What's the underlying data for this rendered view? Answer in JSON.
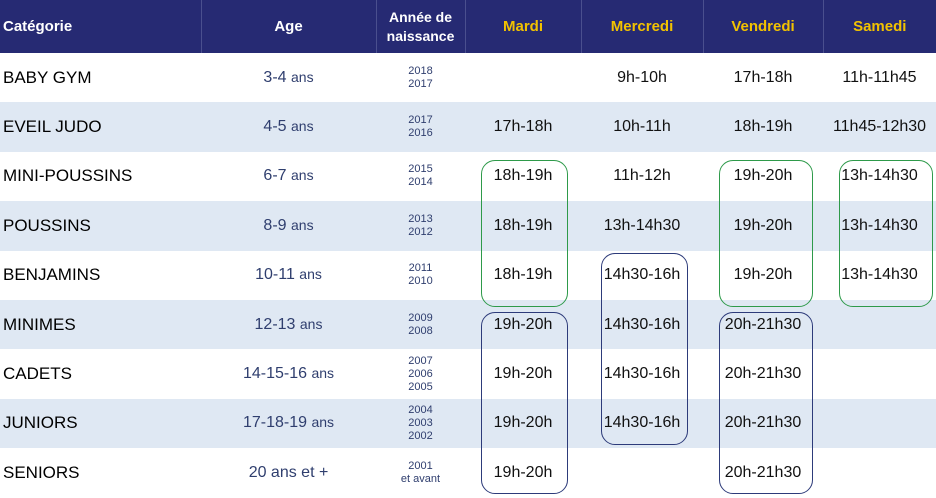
{
  "header": {
    "categorie": "Catégorie",
    "age": "Age",
    "annee_line1": "Année de",
    "annee_line2": "naissance",
    "days": [
      "Mardi",
      "Mercredi",
      "Vendredi",
      "Samedi"
    ]
  },
  "rows": [
    {
      "cat": "BABY GYM",
      "age_num": "3-4",
      "age_unit": "ans",
      "years": [
        "2018",
        "2017"
      ],
      "mardi": "",
      "mercredi": "9h-10h",
      "vendredi": "17h-18h",
      "samedi": "11h-11h45"
    },
    {
      "cat": "EVEIL JUDO",
      "age_num": "4-5",
      "age_unit": "ans",
      "years": [
        "2017",
        "2016"
      ],
      "mardi": "17h-18h",
      "mercredi": "10h-11h",
      "vendredi": "18h-19h",
      "samedi": "11h45-12h30"
    },
    {
      "cat": "MINI-POUSSINS",
      "age_num": "6-7",
      "age_unit": "ans",
      "years": [
        "2015",
        "2014"
      ],
      "mardi": "18h-19h",
      "mercredi": "11h-12h",
      "vendredi": "19h-20h",
      "samedi": "13h-14h30"
    },
    {
      "cat": "POUSSINS",
      "age_num": "8-9",
      "age_unit": "ans",
      "years": [
        "2013",
        "2012"
      ],
      "mardi": "18h-19h",
      "mercredi": "13h-14h30",
      "vendredi": "19h-20h",
      "samedi": "13h-14h30"
    },
    {
      "cat": "BENJAMINS",
      "age_num": "10-11",
      "age_unit": "ans",
      "years": [
        "2011",
        "2010"
      ],
      "mardi": "18h-19h",
      "mercredi": "14h30-16h",
      "vendredi": "19h-20h",
      "samedi": "13h-14h30"
    },
    {
      "cat": "MINIMES",
      "age_num": "12-13",
      "age_unit": "ans",
      "years": [
        "2009",
        "2008"
      ],
      "mardi": "19h-20h",
      "mercredi": "14h30-16h",
      "vendredi": "20h-21h30",
      "samedi": ""
    },
    {
      "cat": "CADETS",
      "age_num": "14-15-16",
      "age_unit": "ans",
      "years": [
        "2007",
        "2006",
        "2005"
      ],
      "mardi": "19h-20h",
      "mercredi": "14h30-16h",
      "vendredi": "20h-21h30",
      "samedi": ""
    },
    {
      "cat": "JUNIORS",
      "age_num": "17-18-19",
      "age_unit": "ans",
      "years": [
        "2004",
        "2003",
        "2002"
      ],
      "mardi": "19h-20h",
      "mercredi": "14h30-16h",
      "vendredi": "20h-21h30",
      "samedi": ""
    },
    {
      "cat": "SENIORS",
      "age_num": "20 ans et +",
      "age_unit": "",
      "years": [
        "2001",
        "et avant"
      ],
      "mardi": "19h-20h",
      "mercredi": "",
      "vendredi": "20h-21h30",
      "samedi": ""
    }
  ],
  "highlight_color": "#b5121b",
  "frame_colors": {
    "green": "#2e9a4a",
    "navy": "#2d3b7a"
  }
}
